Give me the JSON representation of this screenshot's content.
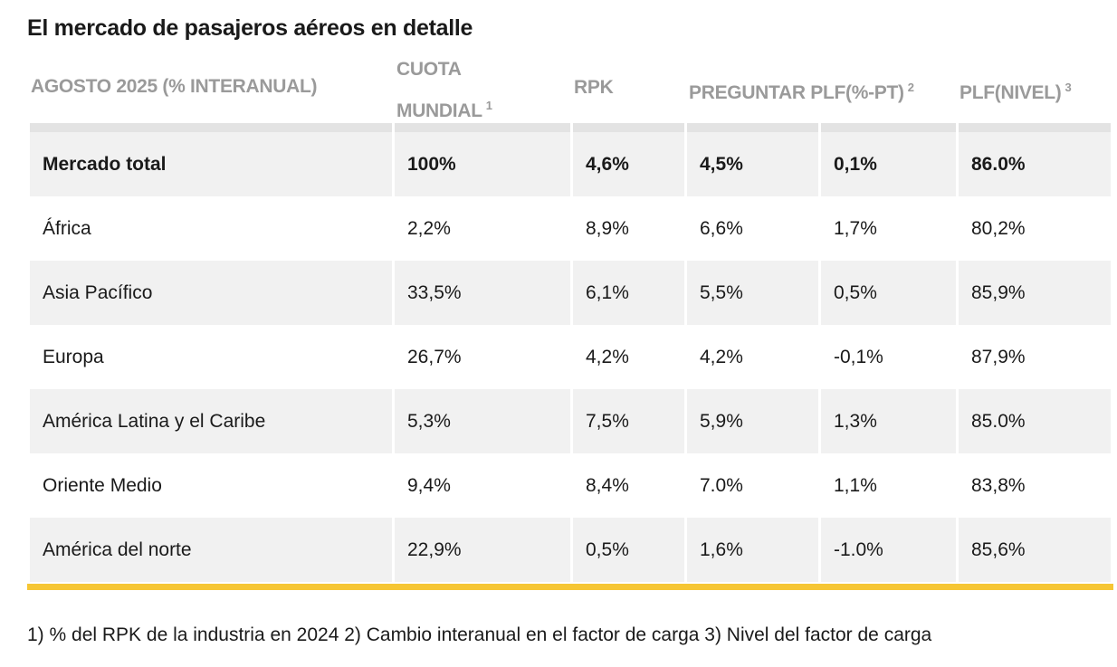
{
  "title": "El mercado de pasajeros aéreos en detalle",
  "headers": {
    "period": "AGOSTO 2025 (% INTERANUAL)",
    "share_line1": "CUOTA",
    "share_line2": "MUNDIAL",
    "share_note": "1",
    "rpk": "RPK",
    "ask_plf": "PREGUNTAR PLF(%-PT)",
    "ask_plf_note": "2",
    "plf_level": "PLF(NIVEL)",
    "plf_level_note": "3"
  },
  "rows": [
    {
      "region": "Mercado total",
      "share": "100%",
      "rpk": "4,6%",
      "ask": "4,5%",
      "plf_pt": "0,1%",
      "plf_level": "86.0%"
    },
    {
      "region": "África",
      "share": "2,2%",
      "rpk": "8,9%",
      "ask": "6,6%",
      "plf_pt": "1,7%",
      "plf_level": "80,2%"
    },
    {
      "region": "Asia Pacífico",
      "share": "33,5%",
      "rpk": "6,1%",
      "ask": "5,5%",
      "plf_pt": "0,5%",
      "plf_level": "85,9%"
    },
    {
      "region": "Europa",
      "share": "26,7%",
      "rpk": "4,2%",
      "ask": "4,2%",
      "plf_pt": "-0,1%",
      "plf_level": "87,9%"
    },
    {
      "region": "América Latina y el Caribe",
      "share": "5,3%",
      "rpk": "7,5%",
      "ask": "5,9%",
      "plf_pt": "1,3%",
      "plf_level": "85.0%"
    },
    {
      "region": "Oriente Medio",
      "share": "9,4%",
      "rpk": "8,4%",
      "ask": "7.0%",
      "plf_pt": "1,1%",
      "plf_level": "83,8%"
    },
    {
      "region": "América del norte",
      "share": "22,9%",
      "rpk": "0,5%",
      "ask": "1,6%",
      "plf_pt": "-1.0%",
      "plf_level": "85,6%"
    }
  ],
  "footnote": "1) % del RPK de la industria en 2024 2) Cambio interanual en el factor de carga 3) Nivel del factor de carga",
  "colors": {
    "accent": "#f6c634",
    "header_text": "#9a9a9a",
    "stripe": "#f1f1f1"
  }
}
